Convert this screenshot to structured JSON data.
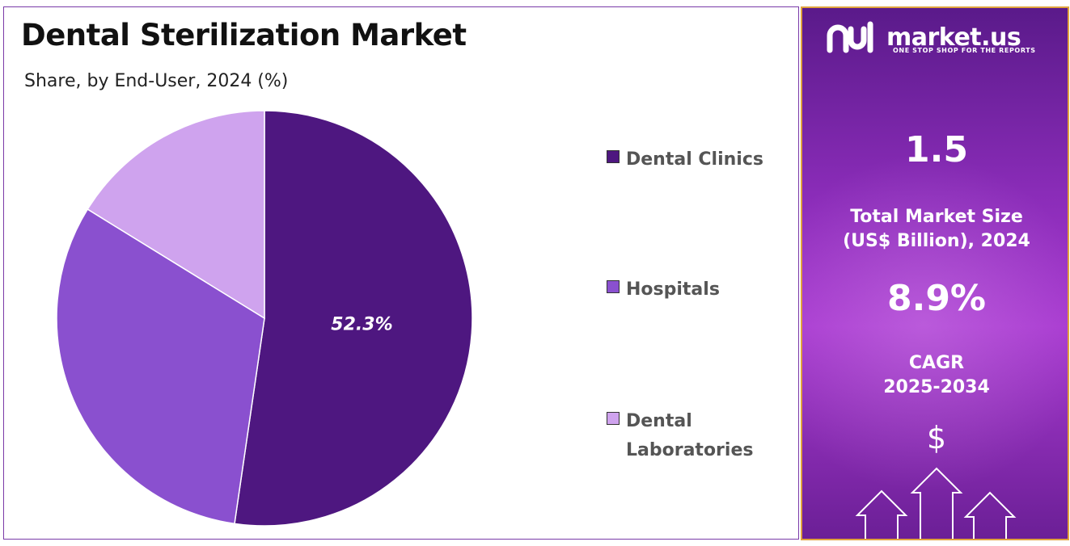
{
  "title": "Dental Sterilization Market",
  "subtitle": "Share, by End-User, 2024 (%)",
  "chart_data": {
    "type": "pie",
    "categories": [
      "Dental Clinics",
      "Hospitals",
      "Dental Laboratories"
    ],
    "values": [
      52.3,
      31.5,
      16.2
    ],
    "colors": [
      "#4e1780",
      "#8a50cf",
      "#cfa3ee"
    ],
    "data_labels": [
      "52.3%",
      "",
      ""
    ],
    "legend_position": "right"
  },
  "legend": [
    {
      "label": "Dental Clinics",
      "color": "#4e1780"
    },
    {
      "label": "Hospitals",
      "color": "#8a50cf"
    },
    {
      "label": "Dental Laboratories",
      "color": "#cfa3ee"
    }
  ],
  "panel": {
    "brand": "market.us",
    "tagline": "ONE STOP SHOP FOR THE REPORTS",
    "market_size": "1.5",
    "market_size_label_1": "Total Market Size",
    "market_size_label_2": "(US$ Billion), 2024",
    "cagr": "8.9%",
    "cagr_label_1": "CAGR",
    "cagr_label_2": "2025-2034",
    "currency_symbol": "$",
    "logo_icon": "market-us-logo-icon",
    "growth_icon": "growth-arrows-icon"
  }
}
